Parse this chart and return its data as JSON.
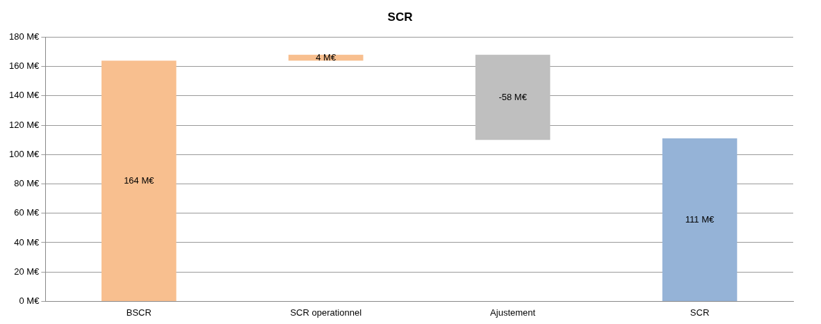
{
  "chart_data": {
    "type": "bar",
    "title": "SCR",
    "categories": [
      "BSCR",
      "SCR operationnel",
      "Ajustement",
      "SCR"
    ],
    "values": [
      164,
      4,
      -58,
      111
    ],
    "base": [
      0,
      164,
      168,
      0
    ],
    "colors": [
      "#f8bf8f",
      "#f8bf8f",
      "#bfbfbf",
      "#95b3d7"
    ],
    "value_labels": [
      "164 M€",
      "4 M€",
      "-58 M€",
      "111 M€"
    ],
    "ylim": [
      0,
      180
    ],
    "yticks": [
      {
        "value": 0,
        "label": "0 M€"
      },
      {
        "value": 20,
        "label": "20 M€"
      },
      {
        "value": 40,
        "label": "40 M€"
      },
      {
        "value": 60,
        "label": "60 M€"
      },
      {
        "value": 80,
        "label": "80 M€"
      },
      {
        "value": 100,
        "label": "100 M€"
      },
      {
        "value": 120,
        "label": "120 M€"
      },
      {
        "value": 140,
        "label": "140 M€"
      },
      {
        "value": 160,
        "label": "160 M€"
      },
      {
        "value": 180,
        "label": "180 M€"
      }
    ],
    "grid": "y",
    "legend": false
  }
}
